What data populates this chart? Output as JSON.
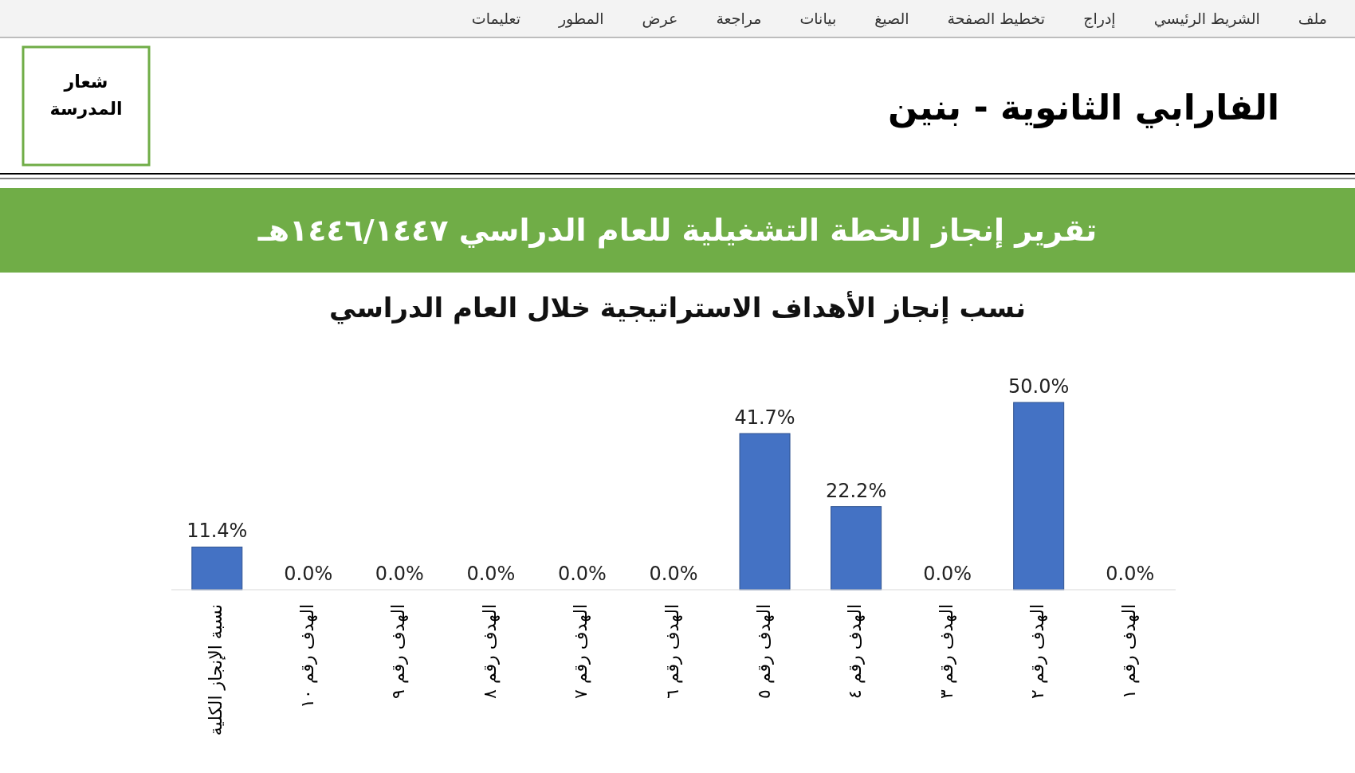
{
  "chart_data": {
    "type": "bar",
    "title": "نسب إنجاز الأهداف الاستراتيجية خلال العام الدراسي",
    "subtitle": "تقرير إنجاز الخطة التشغيلية للعام الدراسي ١٤٤٦/١٤٤٧هـ",
    "categories": [
      "نسبة الإنجاز الكلية",
      "الهدف رقم ١٠",
      "الهدف رقم ٩",
      "الهدف رقم ٨",
      "الهدف رقم ٧",
      "الهدف رقم ٦",
      "الهدف رقم ٥",
      "الهدف رقم ٤",
      "الهدف رقم ٣",
      "الهدف رقم ٢",
      "الهدف رقم ١"
    ],
    "values": [
      11.4,
      0.0,
      0.0,
      0.0,
      0.0,
      0.0,
      41.7,
      22.2,
      0.0,
      50.0,
      0.0
    ],
    "value_labels": [
      "11.4%",
      "0.0%",
      "0.0%",
      "0.0%",
      "0.0%",
      "0.0%",
      "41.7%",
      "22.2%",
      "0.0%",
      "50.0%",
      "0.0%"
    ],
    "color": "#4472c4",
    "annotations": [
      "الفارابي الثانوية - بنين",
      "شعار المدرسة",
      "ملف",
      "الشريط الرئيسي",
      "إدراج",
      "تخطيط الصفحة",
      "الصيغ",
      "بيانات",
      "مراجعة",
      "عرض",
      "المطور",
      "تعليمات"
    ]
  }
}
